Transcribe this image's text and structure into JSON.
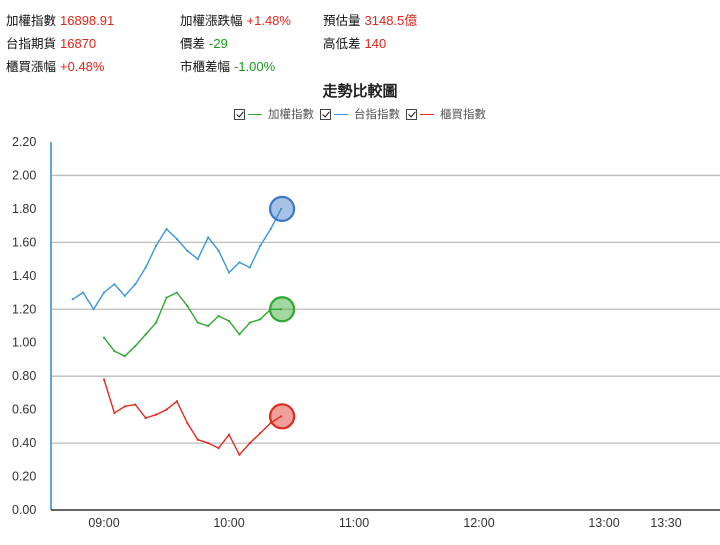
{
  "stats": [
    {
      "label": "加權指數",
      "value": "16898.91",
      "tone": "up"
    },
    {
      "label": "加權漲跌幅",
      "value": "+1.48%",
      "tone": "up"
    },
    {
      "label": "預估量",
      "value": "3148.5億",
      "tone": "up"
    },
    {
      "label": "台指期貨",
      "value": "16870",
      "tone": "up"
    },
    {
      "label": "價差",
      "value": "-29",
      "tone": "down"
    },
    {
      "label": "高低差",
      "value": "140",
      "tone": "up"
    },
    {
      "label": "櫃買漲幅",
      "value": "+0.48%",
      "tone": "up"
    },
    {
      "label": "市櫃差幅",
      "value": "-1.00%",
      "tone": "down"
    }
  ],
  "colors": {
    "up": "#e0261b",
    "down": "#1a9a1a",
    "grid": "#bdbdbd",
    "axis": "#3a8fd9"
  },
  "chart_data": {
    "type": "line",
    "title": "走勢比較圖",
    "legend_position": "top-center",
    "xlabel": "",
    "ylabel": "",
    "x_ticks": [
      "09:00",
      "10:00",
      "11:00",
      "12:00",
      "13:00",
      "13:30"
    ],
    "y_ticks": [
      "0.00",
      "0.20",
      "0.40",
      "0.60",
      "0.80",
      "1.00",
      "1.20",
      "1.40",
      "1.60",
      "1.80",
      "2.00",
      "2.20"
    ],
    "ylim": [
      0,
      2.2
    ],
    "xlim": [
      "08:45",
      "13:30"
    ],
    "grid": true,
    "series": [
      {
        "name": "加權指數",
        "color": "#2ea82e",
        "marker_color": "#2ea82e",
        "x": [
          "09:00",
          "09:05",
          "09:10",
          "09:15",
          "09:20",
          "09:25",
          "09:30",
          "09:35",
          "09:40",
          "09:45",
          "09:50",
          "09:55",
          "10:00",
          "10:05",
          "10:10",
          "10:15",
          "10:20",
          "10:25"
        ],
        "values": [
          1.03,
          0.95,
          0.92,
          0.98,
          1.05,
          1.12,
          1.27,
          1.3,
          1.22,
          1.12,
          1.1,
          1.16,
          1.13,
          1.05,
          1.12,
          1.14,
          1.2,
          1.2
        ]
      },
      {
        "name": "台指指數",
        "color": "#3b96dc",
        "marker_color": "#3a78c8",
        "x": [
          "08:45",
          "08:50",
          "08:55",
          "09:00",
          "09:05",
          "09:10",
          "09:15",
          "09:20",
          "09:25",
          "09:30",
          "09:35",
          "09:40",
          "09:45",
          "09:50",
          "09:55",
          "10:00",
          "10:05",
          "10:10",
          "10:15",
          "10:20",
          "10:25"
        ],
        "values": [
          1.26,
          1.3,
          1.2,
          1.3,
          1.35,
          1.28,
          1.35,
          1.45,
          1.58,
          1.68,
          1.62,
          1.55,
          1.5,
          1.63,
          1.55,
          1.42,
          1.48,
          1.45,
          1.58,
          1.68,
          1.8
        ]
      },
      {
        "name": "櫃買指數",
        "color": "#e02a20",
        "marker_color": "#e02a20",
        "x": [
          "09:00",
          "09:05",
          "09:10",
          "09:15",
          "09:20",
          "09:25",
          "09:30",
          "09:35",
          "09:40",
          "09:45",
          "09:50",
          "09:55",
          "10:00",
          "10:05",
          "10:10",
          "10:15",
          "10:20",
          "10:25"
        ],
        "values": [
          0.78,
          0.58,
          0.62,
          0.63,
          0.55,
          0.57,
          0.6,
          0.65,
          0.52,
          0.42,
          0.4,
          0.37,
          0.45,
          0.33,
          0.4,
          0.46,
          0.52,
          0.56
        ]
      }
    ]
  }
}
